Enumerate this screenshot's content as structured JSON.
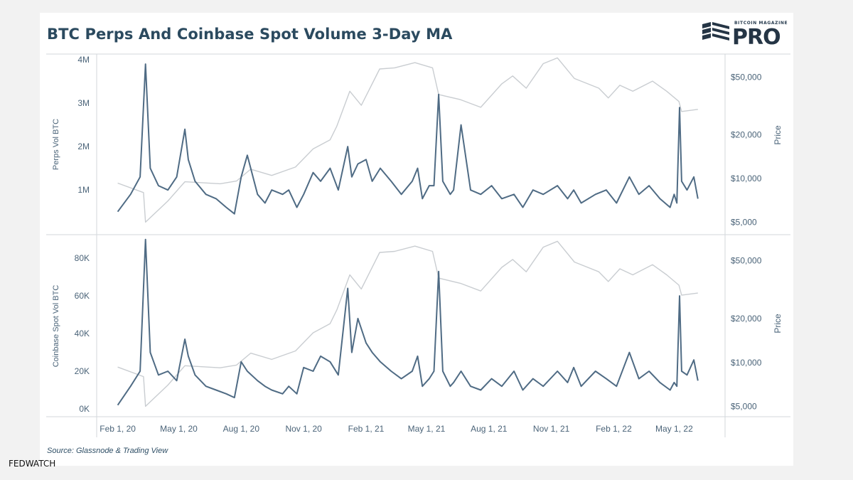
{
  "header": {
    "title": "BTC Perps And Coinbase Spot Volume 3-Day MA",
    "logo_small": "BITCOIN MAGAZINE",
    "logo_big": "PRO"
  },
  "footer": {
    "source": "Source: Glassnode & Trading View",
    "watermark": "FEDWATCH"
  },
  "colors": {
    "title": "#2b4a5f",
    "volume_line": "#4f6b84",
    "price_line": "#c9cdd1",
    "axis_text": "#4a6378",
    "frame": "#d3d7db"
  },
  "chart_data": [
    {
      "type": "line",
      "title": "",
      "ylabel": "Perps Vol BTC",
      "y2label": "Price",
      "y_ticks": [
        "4M",
        "3M",
        "2M",
        "1M"
      ],
      "y2_ticks": [
        "$50,000",
        "$20,000",
        "$10,000",
        "$5,000"
      ],
      "ylim": [
        200000,
        4000000
      ],
      "y2lim": [
        4800,
        66000
      ],
      "y2scale": "log",
      "grid": false,
      "series": [
        {
          "role": "volume",
          "x": [
            "2020-02-01",
            "2020-02-20",
            "2020-03-05",
            "2020-03-13",
            "2020-03-20",
            "2020-04-01",
            "2020-04-15",
            "2020-04-28",
            "2020-05-10",
            "2020-05-15",
            "2020-05-25",
            "2020-06-10",
            "2020-06-25",
            "2020-07-10",
            "2020-07-22",
            "2020-08-01",
            "2020-08-10",
            "2020-08-25",
            "2020-09-05",
            "2020-09-15",
            "2020-10-01",
            "2020-10-10",
            "2020-10-22",
            "2020-11-01",
            "2020-11-15",
            "2020-11-26",
            "2020-12-10",
            "2020-12-22",
            "2021-01-05",
            "2021-01-11",
            "2021-01-20",
            "2021-02-01",
            "2021-02-10",
            "2021-02-22",
            "2021-03-10",
            "2021-03-25",
            "2021-04-10",
            "2021-04-18",
            "2021-04-25",
            "2021-05-05",
            "2021-05-12",
            "2021-05-19",
            "2021-05-25",
            "2021-06-05",
            "2021-06-10",
            "2021-06-21",
            "2021-07-05",
            "2021-07-20",
            "2021-08-05",
            "2021-08-20",
            "2021-09-07",
            "2021-09-20",
            "2021-10-05",
            "2021-10-20",
            "2021-11-10",
            "2021-11-25",
            "2021-12-04",
            "2021-12-15",
            "2022-01-05",
            "2022-01-21",
            "2022-02-05",
            "2022-02-24",
            "2022-03-10",
            "2022-03-25",
            "2022-04-10",
            "2022-04-25",
            "2022-05-01",
            "2022-05-05",
            "2022-05-09",
            "2022-05-12",
            "2022-05-20",
            "2022-05-30",
            "2022-06-05"
          ],
          "values": [
            500000,
            900000,
            1300000,
            3900000,
            1500000,
            1100000,
            1000000,
            1300000,
            2400000,
            1700000,
            1200000,
            900000,
            800000,
            600000,
            450000,
            1300000,
            1800000,
            900000,
            700000,
            1000000,
            900000,
            1000000,
            600000,
            900000,
            1400000,
            1200000,
            1500000,
            1000000,
            2000000,
            1300000,
            1600000,
            1700000,
            1200000,
            1500000,
            1200000,
            900000,
            1200000,
            1500000,
            800000,
            1100000,
            1100000,
            3200000,
            1200000,
            900000,
            1000000,
            2500000,
            1000000,
            900000,
            1100000,
            800000,
            900000,
            600000,
            1000000,
            900000,
            1100000,
            800000,
            1000000,
            700000,
            900000,
            1000000,
            700000,
            1300000,
            900000,
            1100000,
            800000,
            600000,
            900000,
            700000,
            2900000,
            1200000,
            1000000,
            1300000,
            800000
          ]
        },
        {
          "role": "price",
          "x": [
            "2020-02-01",
            "2020-03-10",
            "2020-03-13",
            "2020-04-15",
            "2020-05-10",
            "2020-07-01",
            "2020-07-25",
            "2020-08-15",
            "2020-09-15",
            "2020-10-20",
            "2020-11-15",
            "2020-12-10",
            "2020-12-20",
            "2021-01-08",
            "2021-01-25",
            "2021-02-21",
            "2021-03-15",
            "2021-04-14",
            "2021-05-10",
            "2021-05-19",
            "2021-06-20",
            "2021-07-20",
            "2021-08-20",
            "2021-09-05",
            "2021-09-25",
            "2021-10-20",
            "2021-11-10",
            "2021-12-05",
            "2022-01-10",
            "2022-01-24",
            "2022-02-10",
            "2022-03-01",
            "2022-03-30",
            "2022-04-20",
            "2022-05-08",
            "2022-05-12",
            "2022-06-05"
          ],
          "values": [
            9300,
            8000,
            5000,
            7000,
            9500,
            9200,
            9600,
            11600,
            10500,
            12000,
            16000,
            18500,
            23000,
            40000,
            32000,
            57000,
            58000,
            63000,
            58000,
            38000,
            35000,
            31000,
            45000,
            51000,
            42000,
            62000,
            68000,
            49000,
            42000,
            36000,
            44000,
            40000,
            47000,
            40000,
            34000,
            29000,
            30000
          ]
        }
      ]
    },
    {
      "type": "line",
      "title": "",
      "ylabel": "Coinbase Spot Vol BTC",
      "y2label": "Price",
      "y_ticks": [
        "80K",
        "60K",
        "40K",
        "20K",
        "0K"
      ],
      "y2_ticks": [
        "$50,000",
        "$20,000",
        "$10,000",
        "$5,000"
      ],
      "ylim": [
        0,
        88000
      ],
      "y2lim": [
        4800,
        66000
      ],
      "y2scale": "log",
      "grid": false,
      "series": [
        {
          "role": "volume",
          "x": [
            "2020-02-01",
            "2020-02-20",
            "2020-03-05",
            "2020-03-13",
            "2020-03-20",
            "2020-04-01",
            "2020-04-15",
            "2020-04-28",
            "2020-05-10",
            "2020-05-15",
            "2020-05-25",
            "2020-06-10",
            "2020-06-25",
            "2020-07-10",
            "2020-07-22",
            "2020-08-01",
            "2020-08-10",
            "2020-08-25",
            "2020-09-05",
            "2020-09-15",
            "2020-10-01",
            "2020-10-10",
            "2020-10-22",
            "2020-11-01",
            "2020-11-15",
            "2020-11-26",
            "2020-12-10",
            "2020-12-22",
            "2021-01-05",
            "2021-01-11",
            "2021-01-20",
            "2021-02-01",
            "2021-02-10",
            "2021-02-22",
            "2021-03-10",
            "2021-03-25",
            "2021-04-10",
            "2021-04-18",
            "2021-04-25",
            "2021-05-05",
            "2021-05-12",
            "2021-05-19",
            "2021-05-25",
            "2021-06-05",
            "2021-06-10",
            "2021-06-21",
            "2021-07-05",
            "2021-07-20",
            "2021-08-05",
            "2021-08-20",
            "2021-09-07",
            "2021-09-20",
            "2021-10-05",
            "2021-10-20",
            "2021-11-10",
            "2021-11-25",
            "2021-12-04",
            "2021-12-15",
            "2022-01-05",
            "2022-01-21",
            "2022-02-05",
            "2022-02-24",
            "2022-03-10",
            "2022-03-25",
            "2022-04-10",
            "2022-04-25",
            "2022-05-01",
            "2022-05-05",
            "2022-05-09",
            "2022-05-12",
            "2022-05-20",
            "2022-05-30",
            "2022-06-05"
          ],
          "values": [
            2000,
            12000,
            20000,
            90000,
            30000,
            18000,
            20000,
            15000,
            37000,
            28000,
            18000,
            12000,
            10000,
            8000,
            6000,
            25000,
            20000,
            15000,
            12000,
            10000,
            8000,
            12000,
            8000,
            22000,
            20000,
            28000,
            25000,
            18000,
            64000,
            30000,
            48000,
            35000,
            30000,
            25000,
            20000,
            16000,
            20000,
            28000,
            12000,
            16000,
            20000,
            73000,
            20000,
            12000,
            14000,
            20000,
            12000,
            10000,
            16000,
            12000,
            20000,
            10000,
            16000,
            12000,
            20000,
            14000,
            22000,
            12000,
            20000,
            16000,
            12000,
            30000,
            16000,
            20000,
            14000,
            10000,
            14000,
            12000,
            60000,
            20000,
            18000,
            26000,
            15000
          ]
        },
        {
          "role": "price",
          "x": [
            "2020-02-01",
            "2020-03-10",
            "2020-03-13",
            "2020-04-15",
            "2020-05-10",
            "2020-07-01",
            "2020-07-25",
            "2020-08-15",
            "2020-09-15",
            "2020-10-20",
            "2020-11-15",
            "2020-12-10",
            "2020-12-20",
            "2021-01-08",
            "2021-01-25",
            "2021-02-21",
            "2021-03-15",
            "2021-04-14",
            "2021-05-10",
            "2021-05-19",
            "2021-06-20",
            "2021-07-20",
            "2021-08-20",
            "2021-09-05",
            "2021-09-25",
            "2021-10-20",
            "2021-11-10",
            "2021-12-05",
            "2022-01-10",
            "2022-01-24",
            "2022-02-10",
            "2022-03-01",
            "2022-03-30",
            "2022-04-20",
            "2022-05-08",
            "2022-05-12",
            "2022-06-05"
          ],
          "values": [
            9300,
            8000,
            5000,
            7000,
            9500,
            9200,
            9600,
            11600,
            10500,
            12000,
            16000,
            18500,
            23000,
            40000,
            32000,
            57000,
            58000,
            63000,
            58000,
            38000,
            35000,
            31000,
            45000,
            51000,
            42000,
            62000,
            68000,
            49000,
            42000,
            36000,
            44000,
            40000,
            47000,
            40000,
            34000,
            29000,
            30000
          ]
        }
      ]
    }
  ],
  "x_axis": {
    "ticks": [
      {
        "label": "Feb 1, 20",
        "date": "2020-02-01"
      },
      {
        "label": "May 1, 20",
        "date": "2020-05-01"
      },
      {
        "label": "Aug 1, 20",
        "date": "2020-08-01"
      },
      {
        "label": "Nov 1, 20",
        "date": "2020-11-01"
      },
      {
        "label": "Feb 1, 21",
        "date": "2021-02-01"
      },
      {
        "label": "May 1, 21",
        "date": "2021-05-01"
      },
      {
        "label": "Aug 1, 21",
        "date": "2021-08-01"
      },
      {
        "label": "Nov 1, 21",
        "date": "2021-11-01"
      },
      {
        "label": "Feb 1, 22",
        "date": "2022-02-01"
      },
      {
        "label": "May 1, 22",
        "date": "2022-05-01"
      }
    ],
    "xlim": [
      "2020-01-01",
      "2022-07-15"
    ]
  }
}
